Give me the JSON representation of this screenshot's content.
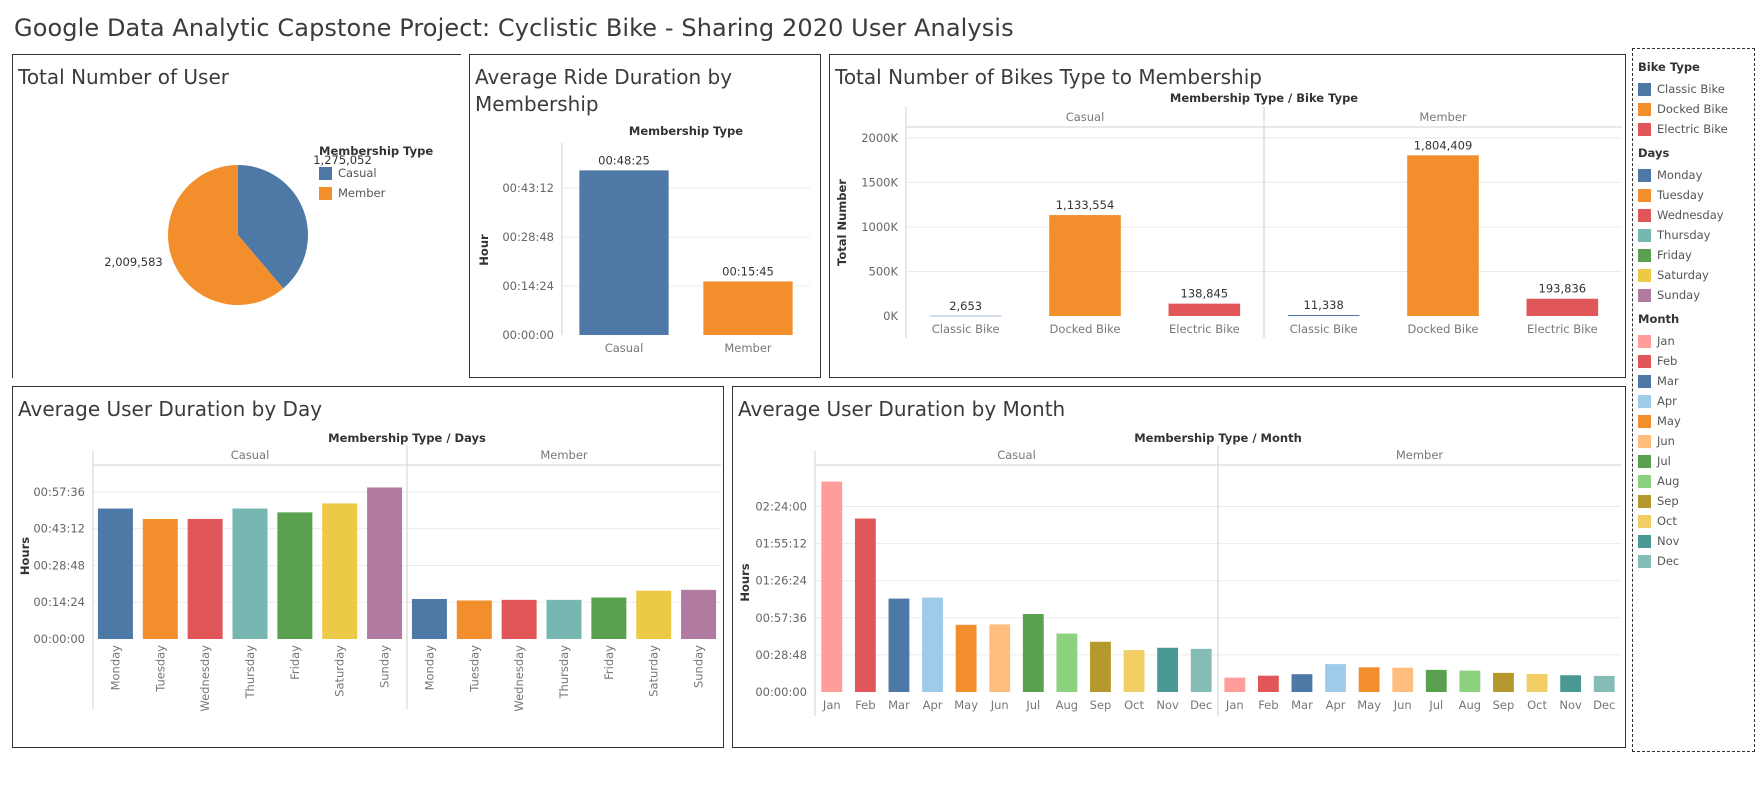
{
  "page": {
    "title": "Google Data Analytic Capstone Project: Cyclistic Bike - Sharing 2020 User Analysis"
  },
  "colors": {
    "casual": "#4e79a7",
    "member": "#f28e2b",
    "classic": "#4e79a7",
    "docked": "#f28e2b",
    "electric": "#e15759",
    "gridline": "#ebebeb",
    "divider": "#d0d0d0"
  },
  "panels": {
    "total_users": {
      "title": "Total Number of User"
    },
    "avg_ride": {
      "title": "Average Ride Duration by Membership"
    },
    "bike_types": {
      "title": "Total Number of Bikes Type to Membership"
    },
    "by_day": {
      "title": "Average User Duration by Day"
    },
    "by_month": {
      "title": "Average User Duration by Month"
    }
  },
  "legends": {
    "membership": {
      "title": "Membership Type",
      "items": [
        {
          "label": "Casual",
          "color": "#4e79a7"
        },
        {
          "label": "Member",
          "color": "#f28e2b"
        }
      ]
    },
    "bike_type": {
      "title": "Bike Type",
      "items": [
        {
          "label": "Classic Bike",
          "color": "#4e79a7"
        },
        {
          "label": "Docked Bike",
          "color": "#f28e2b"
        },
        {
          "label": "Electric Bike",
          "color": "#e15759"
        }
      ]
    },
    "days": {
      "title": "Days",
      "items": [
        {
          "label": "Monday",
          "color": "#4e79a7"
        },
        {
          "label": "Tuesday",
          "color": "#f28e2b"
        },
        {
          "label": "Wednesday",
          "color": "#e15759"
        },
        {
          "label": "Thursday",
          "color": "#76b7b2"
        },
        {
          "label": "Friday",
          "color": "#59a14f"
        },
        {
          "label": "Saturday",
          "color": "#edc948"
        },
        {
          "label": "Sunday",
          "color": "#b07aa1"
        }
      ]
    },
    "month": {
      "title": "Month",
      "items": [
        {
          "label": "Jan",
          "color": "#ff9d9a"
        },
        {
          "label": "Feb",
          "color": "#e15759"
        },
        {
          "label": "Mar",
          "color": "#4e79a7"
        },
        {
          "label": "Apr",
          "color": "#a0cbe8"
        },
        {
          "label": "May",
          "color": "#f28e2b"
        },
        {
          "label": "Jun",
          "color": "#ffbe7d"
        },
        {
          "label": "Jul",
          "color": "#59a14f"
        },
        {
          "label": "Aug",
          "color": "#8cd17d"
        },
        {
          "label": "Sep",
          "color": "#b6992d"
        },
        {
          "label": "Oct",
          "color": "#f1ce63"
        },
        {
          "label": "Nov",
          "color": "#499894"
        },
        {
          "label": "Dec",
          "color": "#86bcb6"
        }
      ]
    }
  },
  "chart_data": [
    {
      "id": "total_users",
      "type": "pie",
      "title": "Total Number of User",
      "legend": "top-right",
      "slices": [
        {
          "label": "Casual",
          "value": 1275052,
          "display": "1,275,052"
        },
        {
          "label": "Member",
          "value": 2009583,
          "display": "2,009,583"
        }
      ]
    },
    {
      "id": "avg_ride",
      "type": "bar",
      "title": "Average Ride Duration by Membership",
      "header": "Membership Type",
      "ylabel": "Hour",
      "ylim": [
        0,
        3000
      ],
      "yticks": [
        0,
        864,
        1728,
        2592
      ],
      "ytick_labels": [
        "00:00:00",
        "00:14:24",
        "00:28:48",
        "00:43:12"
      ],
      "grid": true,
      "categories": [
        "Casual",
        "Member"
      ],
      "values": [
        2905,
        945
      ],
      "data_labels": [
        "00:48:25",
        "00:15:45"
      ]
    },
    {
      "id": "bike_types",
      "type": "bar",
      "title": "Total Number of Bikes Type to Membership",
      "header": "Membership Type  /  Bike Type",
      "ylabel": "Total Number",
      "ylim": [
        0,
        2100000
      ],
      "yticks": [
        0,
        500000,
        1000000,
        1500000,
        2000000
      ],
      "ytick_labels": [
        "0K",
        "500K",
        "1000K",
        "1500K",
        "2000K"
      ],
      "grid": true,
      "groups": [
        "Casual",
        "Member"
      ],
      "categories": [
        "Classic Bike",
        "Docked Bike",
        "Electric Bike"
      ],
      "series": [
        {
          "group": "Casual",
          "values": [
            2653,
            1133554,
            138845
          ],
          "data_labels": [
            "2,653",
            "1,133,554",
            "138,845"
          ]
        },
        {
          "group": "Member",
          "values": [
            11338,
            1804409,
            193836
          ],
          "data_labels": [
            "11,338",
            "1,804,409",
            "193,836"
          ]
        }
      ]
    },
    {
      "id": "by_day",
      "type": "bar",
      "title": "Average User Duration by Day",
      "header": "Membership Type  /  Days",
      "ylabel": "Hours",
      "ylim": [
        0,
        3900
      ],
      "yticks": [
        0,
        864,
        1728,
        2592,
        3456
      ],
      "ytick_labels": [
        "00:00:00",
        "00:14:24",
        "00:28:48",
        "00:43:12",
        "00:57:36"
      ],
      "grid": true,
      "groups": [
        "Casual",
        "Member"
      ],
      "categories": [
        "Monday",
        "Tuesday",
        "Wednesday",
        "Thursday",
        "Friday",
        "Saturday",
        "Sunday"
      ],
      "series": [
        {
          "group": "Casual",
          "values": [
            3065,
            2820,
            2820,
            3065,
            2975,
            3185,
            3560
          ]
        },
        {
          "group": "Member",
          "values": [
            940,
            905,
            920,
            920,
            975,
            1135,
            1155
          ]
        }
      ]
    },
    {
      "id": "by_month",
      "type": "bar",
      "title": "Average User Duration by Month",
      "header": "Membership Type  /  Month",
      "ylabel": "Hours",
      "ylim": [
        0,
        10200
      ],
      "yticks": [
        0,
        1728,
        3456,
        5184,
        6912,
        8640
      ],
      "ytick_labels": [
        "00:00:00",
        "00:28:48",
        "00:57:36",
        "01:26:24",
        "01:55:12",
        "02:24:00"
      ],
      "grid": true,
      "groups": [
        "Casual",
        "Member"
      ],
      "categories": [
        "Jan",
        "Feb",
        "Mar",
        "Apr",
        "May",
        "Jun",
        "Jul",
        "Aug",
        "Sep",
        "Oct",
        "Nov",
        "Dec"
      ],
      "series": [
        {
          "group": "Casual",
          "values": [
            9800,
            8080,
            4350,
            4400,
            3130,
            3150,
            3630,
            2720,
            2340,
            1950,
            2060,
            2010
          ]
        },
        {
          "group": "Member",
          "values": [
            670,
            760,
            830,
            1300,
            1150,
            1130,
            1030,
            995,
            890,
            840,
            780,
            750
          ]
        }
      ]
    }
  ]
}
